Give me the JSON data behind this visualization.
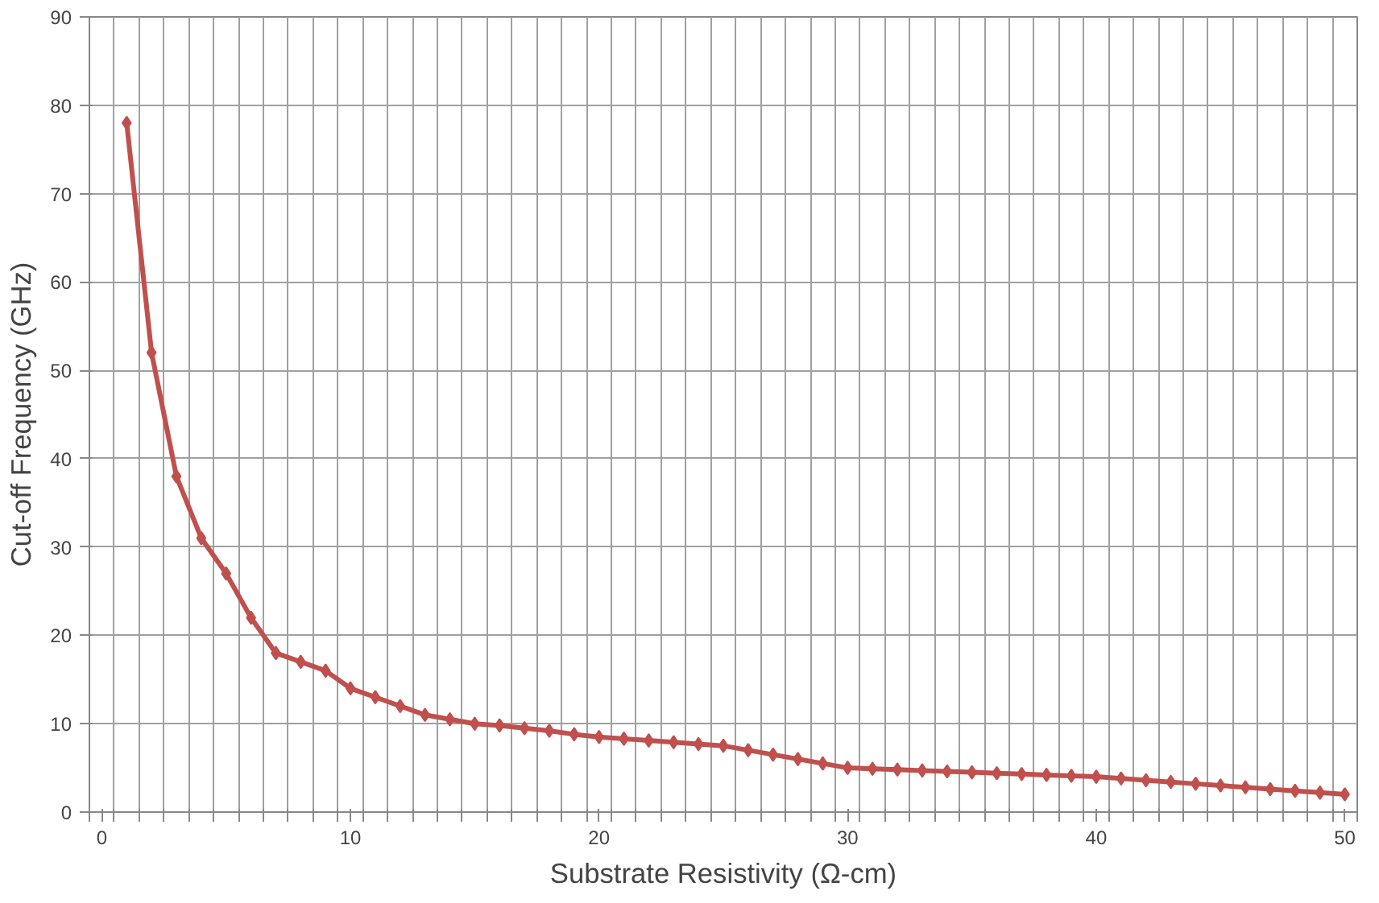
{
  "chart_data": {
    "type": "line",
    "xlabel": "Substrate Resistivity (Ω-cm)",
    "ylabel": "Cut-off Frequency (GHz)",
    "x": [
      1,
      2,
      3,
      4,
      5,
      6,
      7,
      8,
      9,
      10,
      11,
      12,
      13,
      14,
      15,
      16,
      17,
      18,
      19,
      20,
      21,
      22,
      23,
      24,
      25,
      26,
      27,
      28,
      29,
      30,
      31,
      32,
      33,
      34,
      35,
      36,
      37,
      38,
      39,
      40,
      41,
      42,
      43,
      44,
      45,
      46,
      47,
      48,
      49,
      50
    ],
    "series": [
      {
        "color": "#c0504d",
        "values": [
          78,
          52,
          38,
          31,
          27,
          22,
          18,
          17,
          16,
          14,
          13,
          12,
          11,
          10.5,
          10,
          9.8,
          9.5,
          9.2,
          8.8,
          8.5,
          8.3,
          8.1,
          7.9,
          7.7,
          7.5,
          7,
          6.5,
          6,
          5.5,
          5,
          4.9,
          4.8,
          4.7,
          4.6,
          4.5,
          4.4,
          4.3,
          4.2,
          4.1,
          4,
          3.8,
          3.6,
          3.4,
          3.2,
          3,
          2.8,
          2.6,
          2.4,
          2.2,
          2
        ]
      }
    ],
    "xlim": [
      -0.5,
      50.5
    ],
    "ylim": [
      0,
      90
    ],
    "xticks": [
      0,
      10,
      20,
      30,
      40,
      50,
      {
        "value": -0.5,
        "label": null
      },
      {
        "value": 0.5,
        "label": null
      },
      {
        "value": 1.5,
        "label": null
      },
      {
        "value": 2.5,
        "label": null
      },
      {
        "value": 3.5,
        "label": null
      },
      {
        "value": 4.5,
        "label": null
      },
      {
        "value": 5.5,
        "label": null
      },
      {
        "value": 6.5,
        "label": null
      },
      {
        "value": 7.5,
        "label": null
      },
      {
        "value": 8.5,
        "label": null
      },
      {
        "value": 9.5,
        "label": null
      },
      {
        "value": 10.5,
        "label": null
      },
      {
        "value": 11.5,
        "label": null
      },
      {
        "value": 12.5,
        "label": null
      },
      {
        "value": 13.5,
        "label": null
      },
      {
        "value": 14.5,
        "label": null
      },
      {
        "value": 15.5,
        "label": null
      },
      {
        "value": 16.5,
        "label": null
      },
      {
        "value": 17.5,
        "label": null
      },
      {
        "value": 18.5,
        "label": null
      },
      {
        "value": 19.5,
        "label": null
      },
      {
        "value": 20.5,
        "label": null
      },
      {
        "value": 21.5,
        "label": null
      },
      {
        "value": 22.5,
        "label": null
      },
      {
        "value": 23.5,
        "label": null
      },
      {
        "value": 24.5,
        "label": null
      },
      {
        "value": 25.5,
        "label": null
      },
      {
        "value": 26.5,
        "label": null
      },
      {
        "value": 27.5,
        "label": null
      },
      {
        "value": 28.5,
        "label": null
      },
      {
        "value": 29.5,
        "label": null
      },
      {
        "value": 30.5,
        "label": null
      },
      {
        "value": 31.5,
        "label": null
      },
      {
        "value": 32.5,
        "label": null
      },
      {
        "value": 33.5,
        "label": null
      },
      {
        "value": 34.5,
        "label": null
      },
      {
        "value": 35.5,
        "label": null
      },
      {
        "value": 36.5,
        "label": null
      },
      {
        "value": 37.5,
        "label": null
      },
      {
        "value": 38.5,
        "label": null
      },
      {
        "value": 39.5,
        "label": null
      },
      {
        "value": 40.5,
        "label": null
      },
      {
        "value": 41.5,
        "label": null
      },
      {
        "value": 42.5,
        "label": null
      },
      {
        "value": 43.5,
        "label": null
      },
      {
        "value": 44.5,
        "label": null
      },
      {
        "value": 45.5,
        "label": null
      },
      {
        "value": 46.5,
        "label": null
      },
      {
        "value": 47.5,
        "label": null
      },
      {
        "value": 48.5,
        "label": null
      },
      {
        "value": 49.5,
        "label": null
      },
      {
        "value": 50.5,
        "label": null
      }
    ],
    "yticks": [
      0,
      10,
      20,
      30,
      40,
      50,
      60,
      70,
      80,
      90
    ],
    "grid": true,
    "marker": "diamond",
    "line_style": "solid"
  }
}
